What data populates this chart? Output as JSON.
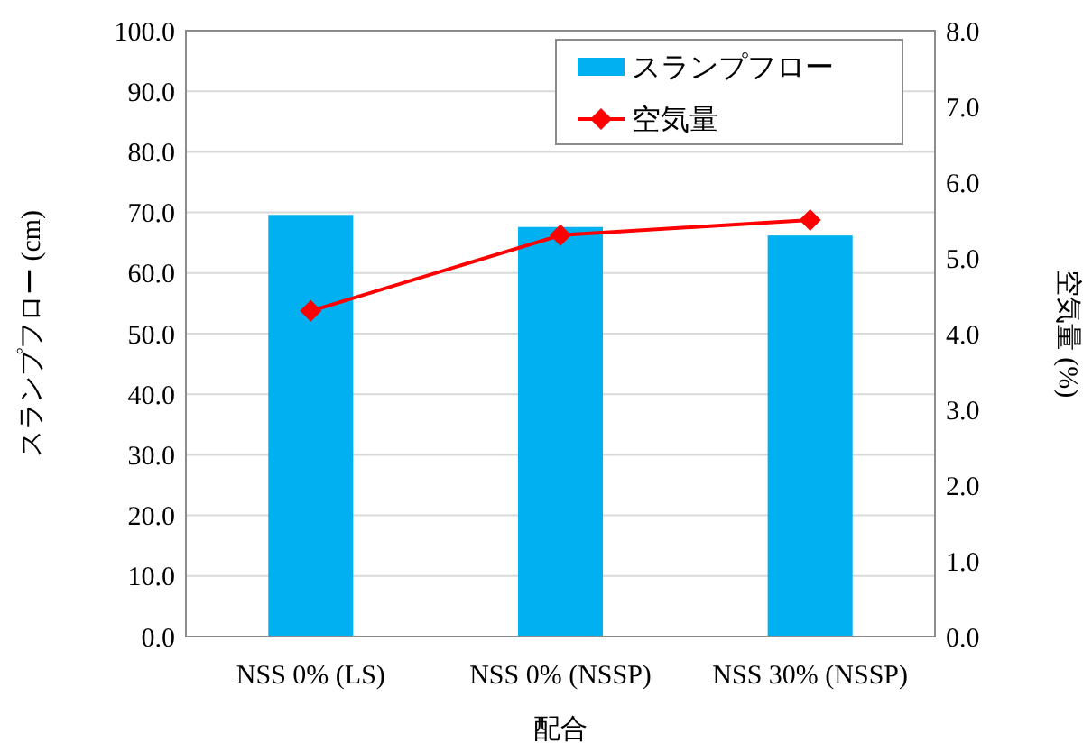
{
  "chart_data": {
    "type": "bar",
    "categories": [
      "NSS 0% (LS)",
      "NSS 0% (NSSP)",
      "NSS 30% (NSSP)"
    ],
    "xlabel": "配合",
    "ylabel": "スランプフロー (cm)",
    "y2label": "空気量 (%)",
    "series": [
      {
        "name": "スランプフロー",
        "color": "#00b0f0",
        "values": [
          69.6,
          67.6,
          66.2
        ]
      },
      {
        "name": "空気量",
        "type": "line",
        "color": "#ff0000",
        "axis": "y2",
        "marker": "diamond",
        "values": [
          4.3,
          5.3,
          5.5
        ]
      }
    ],
    "ylim": [
      0,
      100
    ],
    "yticks": [
      {
        "value": 0,
        "label": "0.0"
      },
      {
        "value": 10,
        "label": "10.0"
      },
      {
        "value": 20,
        "label": "20.0"
      },
      {
        "value": 30,
        "label": "30.0"
      },
      {
        "value": 40,
        "label": "40.0"
      },
      {
        "value": 50,
        "label": "50.0"
      },
      {
        "value": 60,
        "label": "60.0"
      },
      {
        "value": 70,
        "label": "70.0"
      },
      {
        "value": 80,
        "label": "80.0"
      },
      {
        "value": 90,
        "label": "90.0"
      },
      {
        "value": 100,
        "label": "100.0"
      }
    ],
    "y2lim": [
      0,
      8
    ],
    "y2ticks": [
      {
        "value": 0,
        "label": "0.0"
      },
      {
        "value": 1,
        "label": "1.0"
      },
      {
        "value": 2,
        "label": "2.0"
      },
      {
        "value": 3,
        "label": "3.0"
      },
      {
        "value": 4,
        "label": "4.0"
      },
      {
        "value": 5,
        "label": "5.0"
      },
      {
        "value": 6,
        "label": "6.0"
      },
      {
        "value": 7,
        "label": "7.0"
      },
      {
        "value": 8,
        "label": "8.0"
      }
    ],
    "grid": "y",
    "legend": "top right"
  }
}
